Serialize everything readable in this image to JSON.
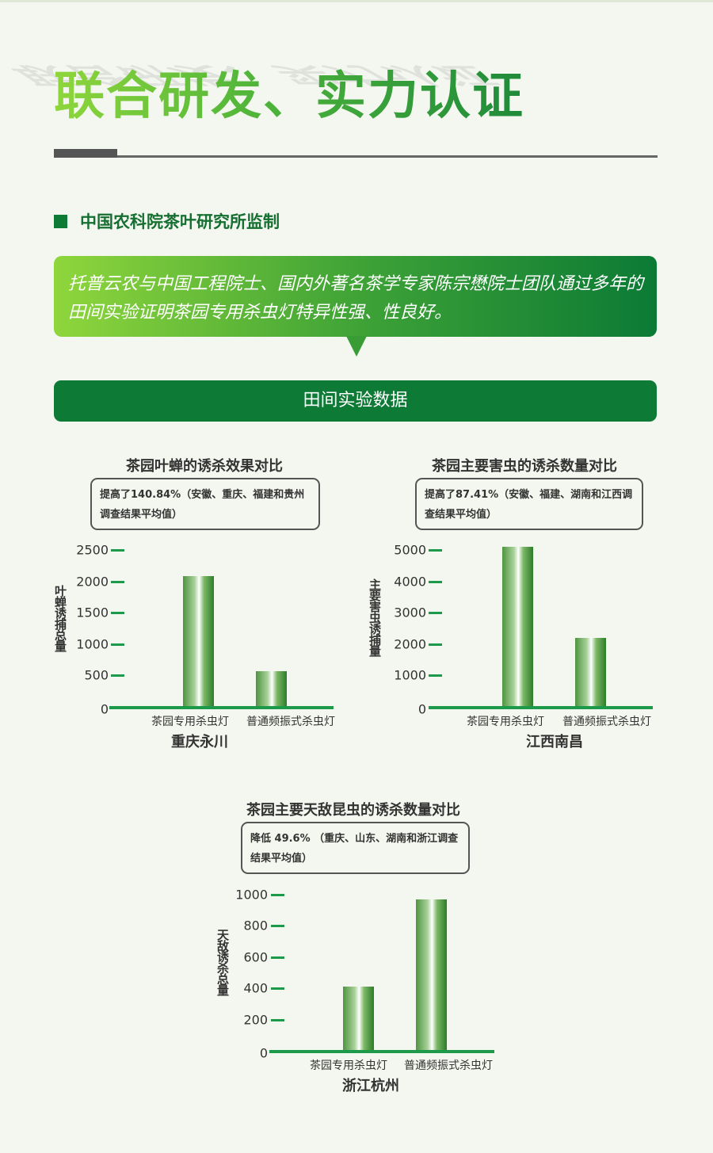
{
  "header": {
    "title": "联合研发、实力认证",
    "subtitle": "中国农科院茶叶研究所监制",
    "description": "托普云农与中国工程院士、国内外著名茶学专家陈宗懋院士团队通过多年的田间实验证明茶园专用杀虫灯特异性强、性良好。",
    "section_banner": "田间实验数据"
  },
  "colors": {
    "accent": "#0d7a35",
    "bar": "#3f8f34",
    "axis": "#1c9a4a"
  },
  "chart_data": [
    {
      "type": "bar",
      "title": "茶园叶蝉的诱杀效果对比",
      "note": "提高了140.84%（安徽、重庆、福建和贵州调查结果平均值）",
      "ylabel": "叶蝉诱捕总量",
      "xlabel": "重庆永川",
      "categories": [
        "茶园专用杀虫灯",
        "普通频振式杀虫灯"
      ],
      "values": [
        2080,
        570
      ],
      "yticks": [
        "0",
        "500",
        "1000",
        "1500",
        "2000",
        "2500"
      ],
      "ylim": [
        0,
        2500
      ],
      "grid": false
    },
    {
      "type": "bar",
      "title": "茶园主要害虫的诱杀数量对比",
      "note": "提高了87.41%（安徽、福建、湖南和江西调查结果平均值）",
      "ylabel": "主要害虫诱捕量",
      "xlabel": "江西南昌",
      "categories": [
        "茶园专用杀虫灯",
        "普通频振式杀虫灯"
      ],
      "values": [
        5100,
        2200
      ],
      "yticks": [
        "0",
        "1000",
        "2000",
        "3000",
        "4000",
        "5000"
      ],
      "ylim": [
        0,
        5000
      ],
      "grid": false
    },
    {
      "type": "bar",
      "title": "茶园主要天敌昆虫的诱杀数量对比",
      "note": "降低 49.6%  （重庆、山东、湖南和浙江调查结果平均值）",
      "ylabel": "天敌诱杀总量",
      "xlabel": "浙江杭州",
      "categories": [
        "茶园专用杀虫灯",
        "普通频振式杀虫灯"
      ],
      "values": [
        410,
        970
      ],
      "yticks": [
        "0",
        "200",
        "400",
        "600",
        "800",
        "1000"
      ],
      "ylim": [
        0,
        1000
      ],
      "grid": false
    }
  ]
}
